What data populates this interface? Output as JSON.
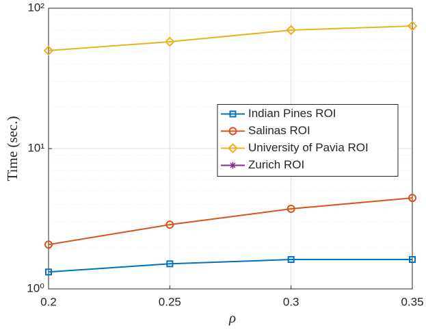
{
  "chart_data": {
    "type": "line",
    "x_label": "ρ",
    "y_label": "Time (sec.)",
    "x": [
      0.2,
      0.25,
      0.3,
      0.35
    ],
    "series": [
      {
        "name": "Indian Pines ROI",
        "color": "#0072bd",
        "marker": "square",
        "values": [
          1.32,
          1.51,
          1.62,
          1.62
        ]
      },
      {
        "name": "Salinas ROI",
        "color": "#d95319",
        "marker": "circle",
        "values": [
          2.07,
          2.87,
          3.72,
          4.45
        ]
      },
      {
        "name": "University of Pavia ROI",
        "color": "#edb120",
        "marker": "diamond",
        "values": [
          49.9,
          57.7,
          69.8,
          74.7
        ]
      },
      {
        "name": "Zurich ROI",
        "color": "#7e2f8e",
        "marker": "asterisk",
        "values": [
          null,
          null,
          null,
          null
        ]
      }
    ],
    "xlim": [
      0.2,
      0.35
    ],
    "xticks": [
      0.2,
      0.25,
      0.3,
      0.35
    ],
    "ylim": [
      1,
      100
    ],
    "yticks": [
      {
        "value": 1,
        "label": "10⁰"
      },
      {
        "value": 10,
        "label": "10¹"
      },
      {
        "value": 100,
        "label": "10²"
      }
    ],
    "y_log": true,
    "grid": true,
    "minor_grid": true,
    "legend_position": "east"
  }
}
